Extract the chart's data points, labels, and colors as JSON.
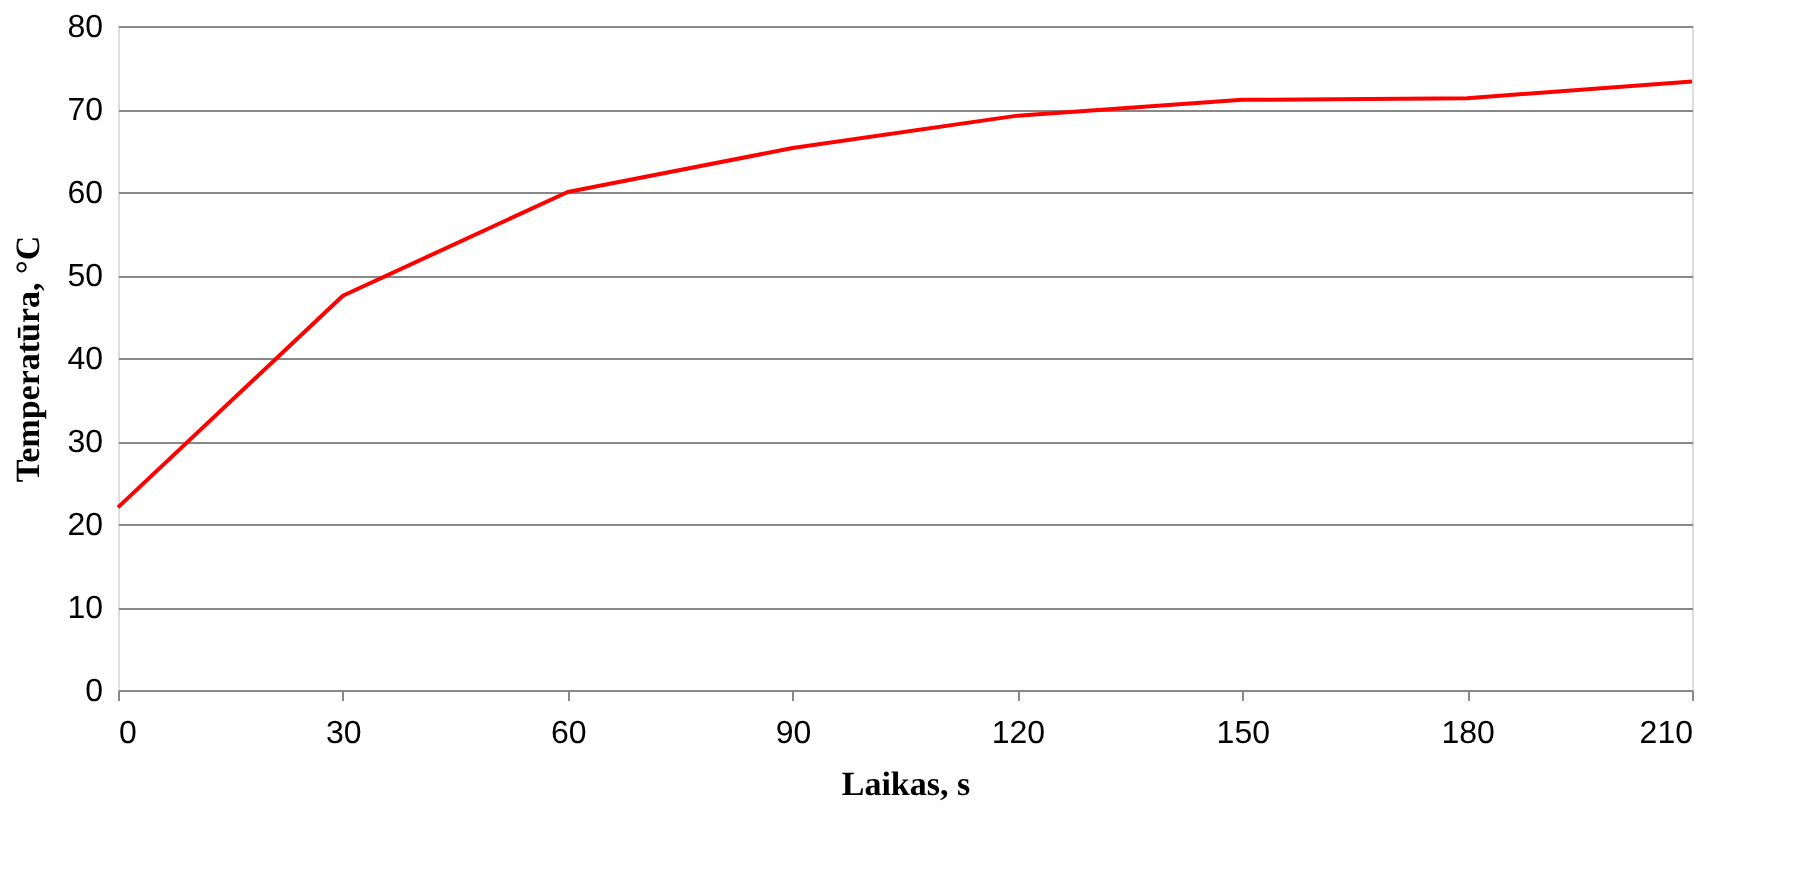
{
  "chart_data": {
    "type": "line",
    "xlabel": "Laikas, s",
    "ylabel": "Temperatūra, °C",
    "x": [
      0,
      30,
      60,
      90,
      120,
      150,
      180,
      210
    ],
    "series": [
      {
        "color": "#ff0000",
        "values": [
          22,
          47.5,
          60,
          65.3,
          69.2,
          71.1,
          71.3,
          73.3
        ]
      }
    ],
    "xlim": [
      0,
      210
    ],
    "xticks": [
      0,
      30,
      60,
      90,
      120,
      150,
      180,
      210
    ],
    "ylim": [
      0,
      80
    ],
    "yticks": [
      0,
      10,
      20,
      30,
      40,
      50,
      60,
      70,
      80
    ],
    "grid": "y",
    "legend": false,
    "marker": "none",
    "line_style": "solid"
  }
}
